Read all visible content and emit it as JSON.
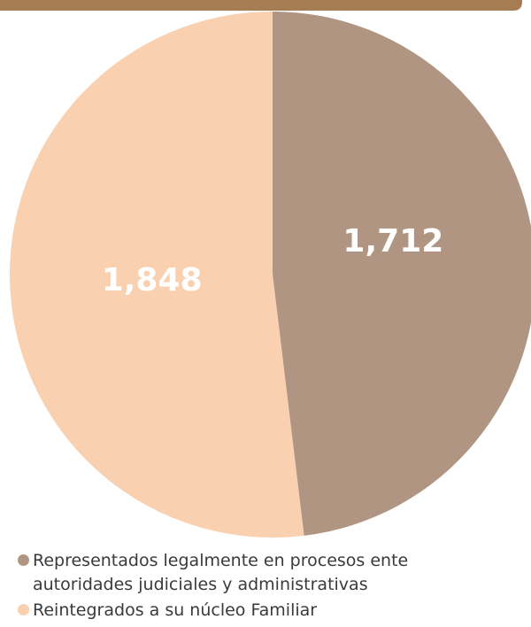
{
  "chart_data": {
    "type": "pie",
    "categories": [
      "Representados legalmente en procesos ente autoridades judiciales y administrativas",
      "Reintegrados a su núcleo Familiar"
    ],
    "values": [
      1712,
      1848
    ],
    "value_labels": [
      "1,712",
      "1,848"
    ],
    "colors": [
      "#b09682",
      "#f9d1b1"
    ]
  }
}
